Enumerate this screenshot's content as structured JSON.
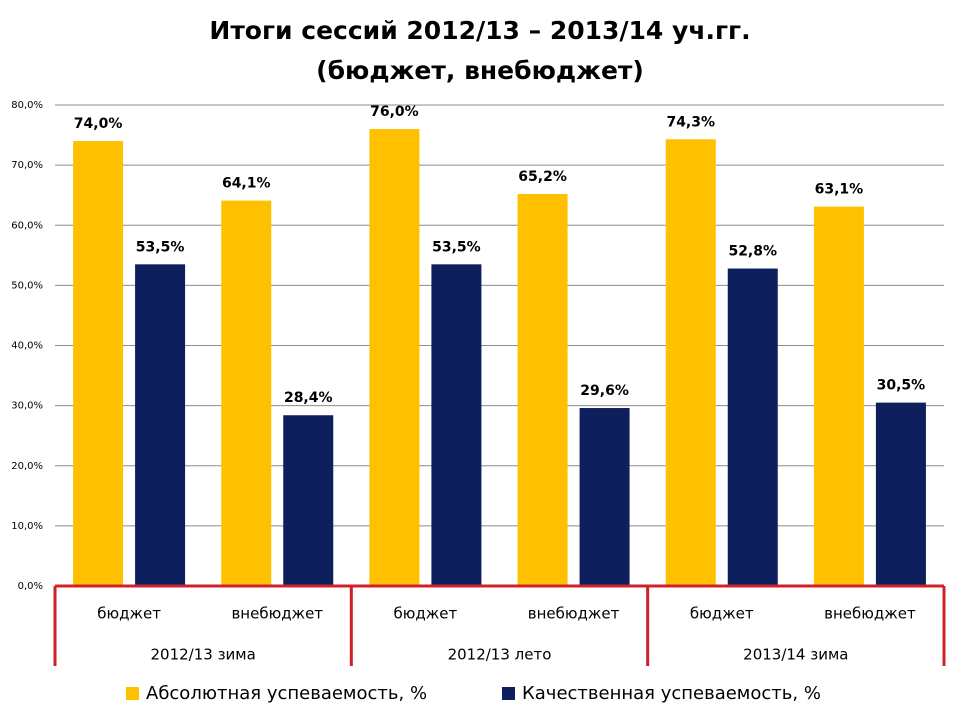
{
  "chart_data": {
    "type": "bar",
    "title": "Итоги сессий  2012/13 – 2013/14 уч.гг.",
    "subtitle": "(бюджет, внебюджет)",
    "categories": [
      "бюджет",
      "внебюджет",
      "бюджет",
      "внебюджет",
      "бюджет",
      "внебюджет"
    ],
    "groups": [
      "2012/13 зима",
      "2012/13 лето",
      "2013/14 зима"
    ],
    "series": [
      {
        "name": "Абсолютная успеваемость, %",
        "color": "#ffc000",
        "values": [
          74.0,
          64.1,
          76.0,
          65.2,
          74.3,
          63.1
        ],
        "value_labels": [
          "74,0%",
          "64,1%",
          "76,0%",
          "65,2%",
          "74,3%",
          "63,1%"
        ]
      },
      {
        "name": "Качественная успеваемость, %",
        "color": "#0d1f5c",
        "values": [
          53.5,
          28.4,
          53.5,
          29.6,
          52.8,
          30.5
        ],
        "value_labels": [
          "53,5%",
          "28,4%",
          "53,5%",
          "29,6%",
          "52,8%",
          "30,5%"
        ]
      }
    ],
    "ylim": [
      0,
      80
    ],
    "yticks": [
      {
        "value": 0,
        "label": "0,0%"
      },
      {
        "value": 10,
        "label": "10,0%"
      },
      {
        "value": 20,
        "label": "20,0%"
      },
      {
        "value": 30,
        "label": "30,0%"
      },
      {
        "value": 40,
        "label": "40,0%"
      },
      {
        "value": 50,
        "label": "50,0%"
      },
      {
        "value": 60,
        "label": "60,0%"
      },
      {
        "value": 70,
        "label": "70,0%"
      },
      {
        "value": 80,
        "label": "80,0%"
      }
    ],
    "grid": true,
    "legend": "bottom"
  }
}
